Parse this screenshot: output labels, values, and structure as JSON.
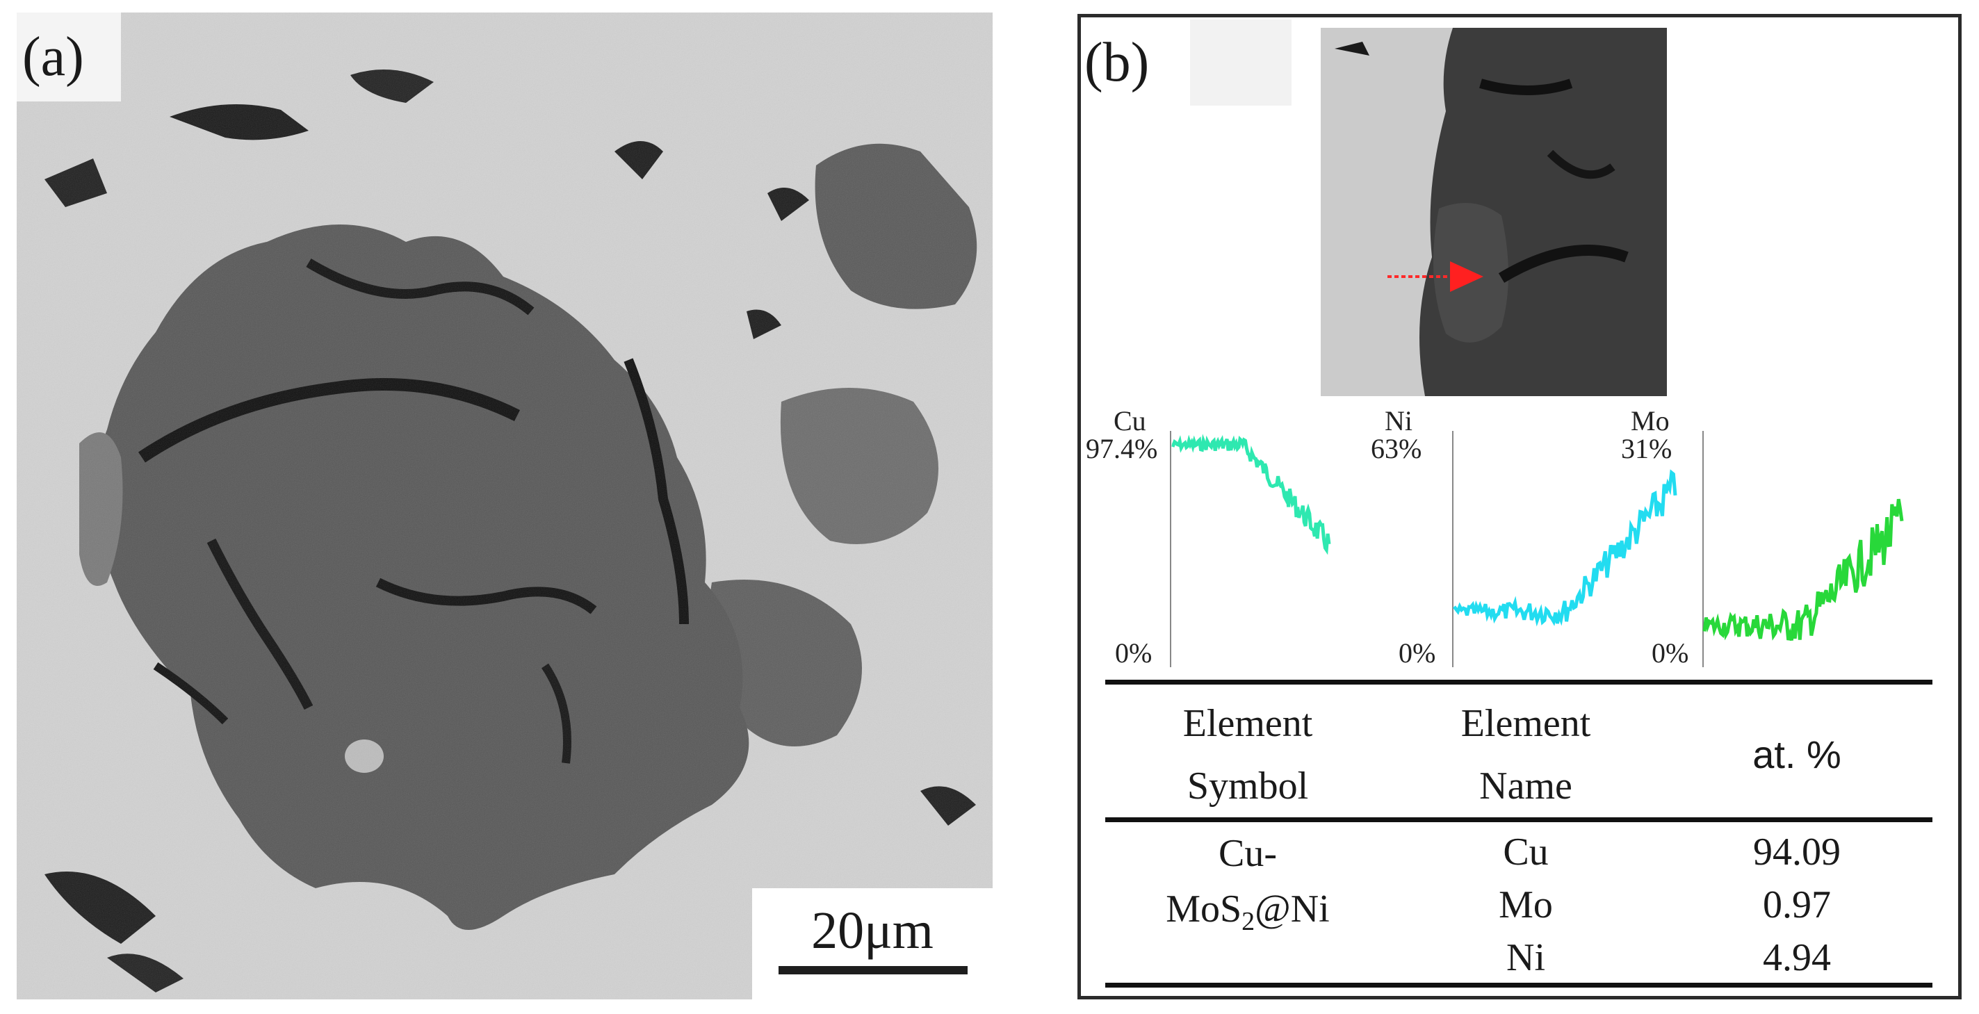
{
  "panel_a": {
    "label": "(a)",
    "scale_bar": "20μm"
  },
  "panel_b": {
    "label": "(b)",
    "linescan": {
      "cu": {
        "element": "Cu",
        "max": "97.4%",
        "min": "0%",
        "color": "#2ee8b0"
      },
      "ni": {
        "element": "Ni",
        "max": "63%",
        "min": "0%",
        "color": "#22dcf0"
      },
      "mo": {
        "element": "Mo",
        "max": "31%",
        "min": "0%",
        "color": "#28d83a"
      }
    },
    "table": {
      "headers": {
        "symbol_line1": "Element",
        "symbol_line2": "Symbol",
        "name_line1": "Element",
        "name_line2": "Name",
        "at": "at. %"
      },
      "sample_line1": "Cu-",
      "sample_line2_pre": "MoS",
      "sample_line2_sub": "2",
      "sample_line2_post": "@Ni",
      "rows": [
        {
          "name": "Cu",
          "value": "94.09"
        },
        {
          "name": "Mo",
          "value": "0.97"
        },
        {
          "name": "Ni",
          "value": "4.94"
        }
      ]
    }
  }
}
